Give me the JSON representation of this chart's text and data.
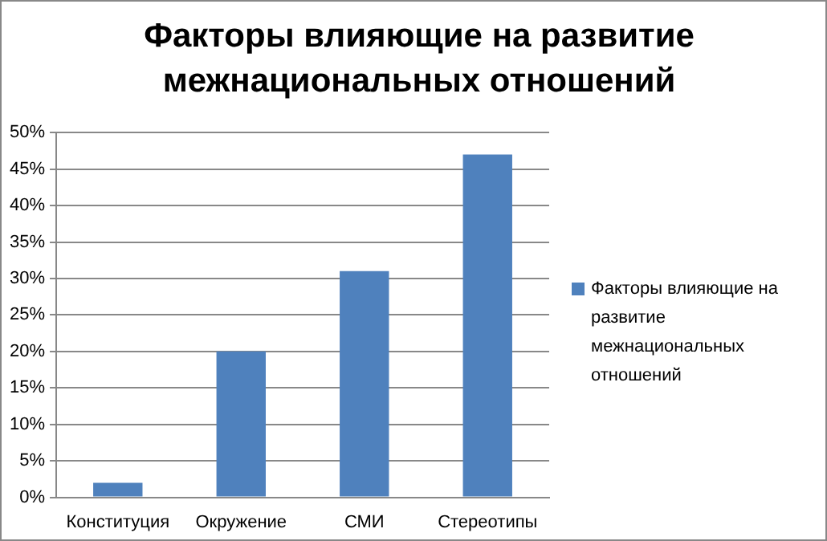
{
  "chart_data": {
    "type": "bar",
    "title": "Факторы влияющие на развитие межнациональных отношений",
    "categories": [
      "Конституция",
      "Окружение",
      "СМИ",
      "Стереотипы"
    ],
    "series": [
      {
        "name": "Факторы влияющие на развитие межнациональных отношений",
        "color": "#4f81bd",
        "values": [
          2,
          20,
          31,
          47
        ]
      }
    ],
    "ylim": [
      0,
      50
    ],
    "yticks": [
      {
        "value": 0,
        "label": "0%"
      },
      {
        "value": 5,
        "label": "5%"
      },
      {
        "value": 10,
        "label": "10%"
      },
      {
        "value": 15,
        "label": "15%"
      },
      {
        "value": 20,
        "label": "20%"
      },
      {
        "value": 25,
        "label": "25%"
      },
      {
        "value": 30,
        "label": "30%"
      },
      {
        "value": 35,
        "label": "35%"
      },
      {
        "value": 40,
        "label": "40%"
      },
      {
        "value": 45,
        "label": "45%"
      },
      {
        "value": 50,
        "label": "50%"
      }
    ],
    "grid": "y",
    "legend": "right"
  }
}
